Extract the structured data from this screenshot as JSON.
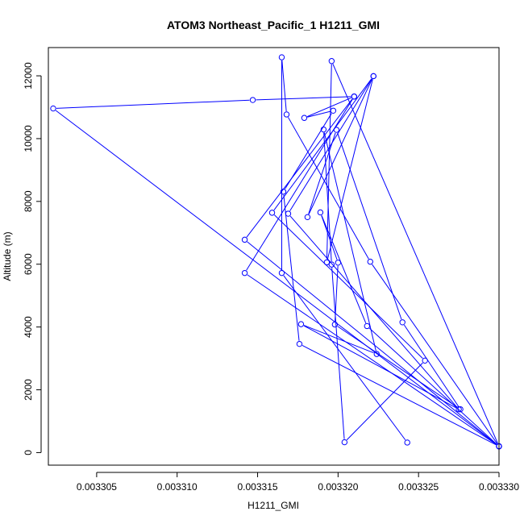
{
  "chart_data": {
    "type": "line",
    "title": "ATOM3 Northeast_Pacific_1 H1211_GMI",
    "xlabel": "H1211_GMI",
    "ylabel": "Altitude (m)",
    "xlim": [
      0.003302,
      0.00333
    ],
    "ylim": [
      -400,
      12900
    ],
    "x_ticks": [
      0.003305,
      0.00331,
      0.003315,
      0.00332,
      0.003325,
      0.00333
    ],
    "x_tick_labels": [
      "0.003305",
      "0.003310",
      "0.003315",
      "0.003320",
      "0.003325",
      "0.003330"
    ],
    "y_ticks": [
      0,
      2000,
      4000,
      6000,
      8000,
      10000,
      12000
    ],
    "y_tick_labels": [
      "0",
      "2000",
      "4000",
      "6000",
      "8000",
      "10000",
      "12000"
    ],
    "grid": false,
    "series_color": "#0000ff",
    "points": [
      {
        "x": 0.0033243,
        "y": 320
      },
      {
        "x": 0.0033165,
        "y": 5720
      },
      {
        "x": 0.0033165,
        "y": 12590
      },
      {
        "x": 0.0033168,
        "y": 10770
      },
      {
        "x": 0.003322,
        "y": 6080
      },
      {
        "x": 0.00333,
        "y": 200
      },
      {
        "x": 0.0033142,
        "y": 6780
      },
      {
        "x": 0.003321,
        "y": 11340
      },
      {
        "x": 0.0033147,
        "y": 11230
      },
      {
        "x": 0.0033023,
        "y": 10960
      },
      {
        "x": 0.00333,
        "y": 200
      },
      {
        "x": 0.0033176,
        "y": 3460
      },
      {
        "x": 0.0033166,
        "y": 8310
      },
      {
        "x": 0.0033197,
        "y": 10890
      },
      {
        "x": 0.0033179,
        "y": 10660
      },
      {
        "x": 0.003321,
        "y": 11340
      },
      {
        "x": 0.0033142,
        "y": 5720
      },
      {
        "x": 0.00333,
        "y": 200
      },
      {
        "x": 0.0033196,
        "y": 12470
      },
      {
        "x": 0.0033193,
        "y": 6060
      },
      {
        "x": 0.0033222,
        "y": 11990
      },
      {
        "x": 0.0033159,
        "y": 7640
      },
      {
        "x": 0.0033254,
        "y": 2930
      },
      {
        "x": 0.0033204,
        "y": 330
      },
      {
        "x": 0.0033196,
        "y": 5990
      },
      {
        "x": 0.0033191,
        "y": 10290
      },
      {
        "x": 0.0033224,
        "y": 3140
      },
      {
        "x": 0.0033177,
        "y": 4090
      },
      {
        "x": 0.0033275,
        "y": 1380
      },
      {
        "x": 0.0033169,
        "y": 7610
      },
      {
        "x": 0.0033222,
        "y": 11990
      },
      {
        "x": 0.0033181,
        "y": 7500
      },
      {
        "x": 0.0033199,
        "y": 10280
      },
      {
        "x": 0.003324,
        "y": 4150
      },
      {
        "x": 0.0033276,
        "y": 1380
      },
      {
        "x": 0.0033198,
        "y": 4080
      },
      {
        "x": 0.00332,
        "y": 6050
      },
      {
        "x": 0.0033189,
        "y": 7650
      },
      {
        "x": 0.0033218,
        "y": 4030
      },
      {
        "x": 0.00333,
        "y": 200
      }
    ]
  }
}
